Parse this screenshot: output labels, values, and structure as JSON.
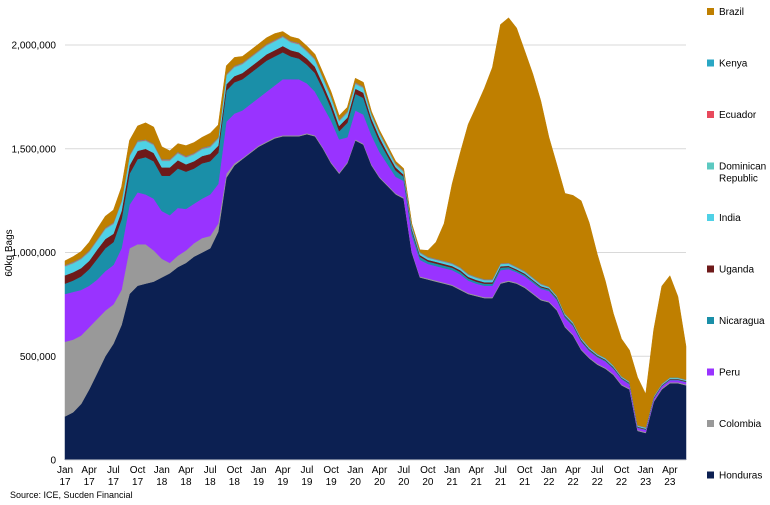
{
  "chart_data": {
    "type": "area",
    "stacked": true,
    "ylabel": "60kg Bags",
    "ylim": [
      0,
      2000000
    ],
    "yticks": [
      0,
      500000,
      1000000,
      1500000,
      2000000
    ],
    "ytick_labels": [
      "0",
      "500,000",
      "1,000,000",
      "1,500,000",
      "2,000,000"
    ],
    "xlim": [
      "2017-01",
      "2023-06"
    ],
    "xticks": [
      {
        "date": "2017-01",
        "label": "Jan 17"
      },
      {
        "date": "2017-04",
        "label": "Apr 17"
      },
      {
        "date": "2017-07",
        "label": "Jul 17"
      },
      {
        "date": "2017-10",
        "label": "Oct 17"
      },
      {
        "date": "2018-01",
        "label": "Jan 18"
      },
      {
        "date": "2018-04",
        "label": "Apr 18"
      },
      {
        "date": "2018-07",
        "label": "Jul 18"
      },
      {
        "date": "2018-10",
        "label": "Oct 18"
      },
      {
        "date": "2019-01",
        "label": "Jan 19"
      },
      {
        "date": "2019-04",
        "label": "Apr 19"
      },
      {
        "date": "2019-07",
        "label": "Jul 19"
      },
      {
        "date": "2019-10",
        "label": "Oct 19"
      },
      {
        "date": "2020-01",
        "label": "Jan 20"
      },
      {
        "date": "2020-04",
        "label": "Apr 20"
      },
      {
        "date": "2020-07",
        "label": "Jul 20"
      },
      {
        "date": "2020-10",
        "label": "Oct 20"
      },
      {
        "date": "2021-01",
        "label": "Jan 21"
      },
      {
        "date": "2021-04",
        "label": "Apr 21"
      },
      {
        "date": "2021-07",
        "label": "Jul 21"
      },
      {
        "date": "2021-10",
        "label": "Oct 21"
      },
      {
        "date": "2022-01",
        "label": "Jan 22"
      },
      {
        "date": "2022-04",
        "label": "Apr 22"
      },
      {
        "date": "2022-07",
        "label": "Jul 22"
      },
      {
        "date": "2022-10",
        "label": "Oct 22"
      },
      {
        "date": "2023-01",
        "label": "Jan 23"
      },
      {
        "date": "2023-04",
        "label": "Apr 23"
      }
    ],
    "grid": true,
    "legend_position": "right",
    "source": "Source: ICE, Sucden Financial",
    "x": [
      "2017-01",
      "2017-02",
      "2017-03",
      "2017-04",
      "2017-05",
      "2017-06",
      "2017-07",
      "2017-08",
      "2017-09",
      "2017-10",
      "2017-11",
      "2017-12",
      "2018-01",
      "2018-02",
      "2018-03",
      "2018-04",
      "2018-05",
      "2018-06",
      "2018-07",
      "2018-08",
      "2018-09",
      "2018-10",
      "2018-11",
      "2018-12",
      "2019-01",
      "2019-02",
      "2019-03",
      "2019-04",
      "2019-05",
      "2019-06",
      "2019-07",
      "2019-08",
      "2019-09",
      "2019-10",
      "2019-11",
      "2019-12",
      "2020-01",
      "2020-02",
      "2020-03",
      "2020-04",
      "2020-05",
      "2020-06",
      "2020-07",
      "2020-08",
      "2020-09",
      "2020-10",
      "2020-11",
      "2020-12",
      "2021-01",
      "2021-02",
      "2021-03",
      "2021-04",
      "2021-05",
      "2021-06",
      "2021-07",
      "2021-08",
      "2021-09",
      "2021-10",
      "2021-11",
      "2021-12",
      "2022-01",
      "2022-02",
      "2022-03",
      "2022-04",
      "2022-05",
      "2022-06",
      "2022-07",
      "2022-08",
      "2022-09",
      "2022-10",
      "2022-11",
      "2022-12",
      "2023-01",
      "2023-02",
      "2023-03",
      "2023-04",
      "2023-05",
      "2023-06"
    ],
    "series": [
      {
        "name": "Honduras",
        "color": "#0c2052",
        "values": [
          210000,
          230000,
          270000,
          340000,
          420000,
          500000,
          560000,
          650000,
          800000,
          840000,
          850000,
          860000,
          880000,
          900000,
          930000,
          950000,
          980000,
          1000000,
          1020000,
          1100000,
          1360000,
          1420000,
          1450000,
          1480000,
          1510000,
          1530000,
          1550000,
          1560000,
          1560000,
          1560000,
          1570000,
          1560000,
          1500000,
          1430000,
          1380000,
          1430000,
          1540000,
          1520000,
          1420000,
          1360000,
          1320000,
          1280000,
          1260000,
          1000000,
          880000,
          870000,
          860000,
          850000,
          840000,
          820000,
          800000,
          790000,
          780000,
          780000,
          850000,
          860000,
          850000,
          830000,
          800000,
          770000,
          760000,
          720000,
          640000,
          600000,
          530000,
          490000,
          460000,
          440000,
          410000,
          360000,
          340000,
          140000,
          130000,
          280000,
          340000,
          370000,
          370000,
          360000
        ]
      },
      {
        "name": "Colombia",
        "color": "#999999",
        "values": [
          360000,
          350000,
          330000,
          300000,
          260000,
          220000,
          190000,
          170000,
          220000,
          200000,
          190000,
          150000,
          90000,
          50000,
          55000,
          60000,
          65000,
          70000,
          60000,
          40000,
          20000,
          10000,
          5000,
          5000,
          5000,
          5000,
          5000,
          5000,
          5000,
          5000,
          5000,
          5000,
          5000,
          5000,
          5000,
          5000,
          5000,
          5000,
          5000,
          5000,
          5000,
          5000,
          5000,
          5000,
          5000,
          5000,
          5000,
          5000,
          5000,
          5000,
          5000,
          5000,
          5000,
          5000,
          5000,
          5000,
          5000,
          5000,
          5000,
          5000,
          5000,
          5000,
          5000,
          5000,
          5000,
          5000,
          5000,
          5000,
          5000,
          5000,
          5000,
          5000,
          5000,
          5000,
          5000,
          5000,
          5000,
          5000
        ]
      },
      {
        "name": "Peru",
        "color": "#9933ff",
        "values": [
          230000,
          230000,
          220000,
          200000,
          190000,
          190000,
          190000,
          200000,
          210000,
          250000,
          240000,
          250000,
          230000,
          230000,
          230000,
          200000,
          190000,
          190000,
          200000,
          190000,
          250000,
          240000,
          230000,
          230000,
          230000,
          240000,
          250000,
          270000,
          270000,
          270000,
          240000,
          210000,
          200000,
          200000,
          160000,
          120000,
          140000,
          140000,
          140000,
          120000,
          100000,
          80000,
          80000,
          80000,
          80000,
          70000,
          70000,
          70000,
          70000,
          70000,
          60000,
          55000,
          55000,
          55000,
          60000,
          55000,
          50000,
          50000,
          50000,
          50000,
          50000,
          45000,
          40000,
          40000,
          35000,
          30000,
          30000,
          30000,
          25000,
          25000,
          20000,
          10000,
          10000,
          10000,
          10000,
          10000,
          10000,
          10000
        ]
      },
      {
        "name": "Nicaragua",
        "color": "#1a8fa8",
        "values": [
          50000,
          55000,
          65000,
          80000,
          100000,
          110000,
          110000,
          140000,
          150000,
          160000,
          180000,
          180000,
          170000,
          190000,
          190000,
          180000,
          170000,
          170000,
          160000,
          150000,
          150000,
          150000,
          150000,
          150000,
          150000,
          150000,
          140000,
          130000,
          110000,
          100000,
          90000,
          90000,
          80000,
          60000,
          40000,
          70000,
          80000,
          80000,
          60000,
          50000,
          40000,
          30000,
          20000,
          20000,
          15000,
          12000,
          12000,
          12000,
          12000,
          12000,
          10000,
          10000,
          10000,
          10000,
          12000,
          10000,
          8000,
          8000,
          8000,
          8000,
          7000,
          7000,
          6000,
          6000,
          5000,
          5000,
          5000,
          5000,
          4000,
          4000,
          4000,
          3000,
          3000,
          3000,
          3000,
          3000,
          3000,
          3000
        ]
      },
      {
        "name": "Uganda",
        "color": "#6e1a1a",
        "values": [
          40000,
          40000,
          40000,
          40000,
          45000,
          45000,
          40000,
          40000,
          40000,
          40000,
          40000,
          40000,
          40000,
          40000,
          40000,
          35000,
          35000,
          35000,
          35000,
          35000,
          30000,
          30000,
          30000,
          30000,
          30000,
          30000,
          30000,
          30000,
          30000,
          30000,
          30000,
          30000,
          25000,
          25000,
          25000,
          25000,
          25000,
          25000,
          20000,
          20000,
          15000,
          15000,
          10000,
          10000,
          8000,
          8000,
          8000,
          8000,
          8000,
          8000,
          8000,
          8000,
          7000,
          7000,
          7000,
          6000,
          6000,
          6000,
          5000,
          5000,
          5000,
          5000,
          5000,
          5000,
          5000,
          5000,
          4000,
          4000,
          4000,
          3000,
          3000,
          3000,
          3000,
          3000,
          3000,
          3000,
          3000,
          3000
        ]
      },
      {
        "name": "India",
        "color": "#4fd1e6",
        "values": [
          40000,
          40000,
          40000,
          40000,
          40000,
          45000,
          45000,
          40000,
          40000,
          40000,
          35000,
          35000,
          30000,
          30000,
          30000,
          30000,
          30000,
          30000,
          30000,
          30000,
          40000,
          40000,
          40000,
          40000,
          40000,
          40000,
          40000,
          40000,
          35000,
          35000,
          30000,
          30000,
          25000,
          25000,
          20000,
          20000,
          20000,
          20000,
          15000,
          15000,
          15000,
          10000,
          10000,
          10000,
          8000,
          8000,
          8000,
          8000,
          8000,
          8000,
          8000,
          8000,
          8000,
          8000,
          8000,
          8000,
          6000,
          6000,
          6000,
          6000,
          5000,
          5000,
          5000,
          5000,
          5000,
          5000,
          4000,
          4000,
          4000,
          3000,
          3000,
          3000,
          3000,
          3000,
          3000,
          3000,
          3000,
          3000
        ]
      },
      {
        "name": "Dominican Republic",
        "color": "#5cc9c1",
        "values": [
          5000,
          5000,
          5000,
          5000,
          5000,
          5000,
          5000,
          5000,
          5000,
          5000,
          5000,
          5000,
          5000,
          5000,
          5000,
          5000,
          5000,
          5000,
          5000,
          5000,
          5000,
          5000,
          5000,
          5000,
          5000,
          5000,
          5000,
          5000,
          5000,
          5000,
          5000,
          5000,
          5000,
          5000,
          5000,
          5000,
          5000,
          5000,
          5000,
          5000,
          5000,
          5000,
          5000,
          5000,
          3000,
          3000,
          3000,
          3000,
          3000,
          3000,
          3000,
          3000,
          3000,
          3000,
          3000,
          3000,
          3000,
          3000,
          3000,
          3000,
          2000,
          2000,
          2000,
          2000,
          2000,
          2000,
          2000,
          2000,
          2000,
          2000,
          2000,
          2000,
          2000,
          2000,
          2000,
          2000,
          2000,
          2000
        ]
      },
      {
        "name": "Ecuador",
        "color": "#e8495c",
        "values": [
          3000,
          3000,
          3000,
          3000,
          3000,
          3000,
          3000,
          3000,
          3000,
          3000,
          3000,
          3000,
          3000,
          3000,
          3000,
          3000,
          3000,
          3000,
          3000,
          3000,
          3000,
          3000,
          3000,
          3000,
          3000,
          3000,
          3000,
          3000,
          3000,
          3000,
          3000,
          3000,
          3000,
          3000,
          3000,
          3000,
          3000,
          3000,
          3000,
          3000,
          3000,
          3000,
          3000,
          3000,
          2000,
          2000,
          2000,
          2000,
          2000,
          2000,
          2000,
          2000,
          2000,
          2000,
          2000,
          2000,
          2000,
          2000,
          2000,
          2000,
          1000,
          1000,
          1000,
          1000,
          1000,
          1000,
          1000,
          1000,
          1000,
          1000,
          1000,
          1000,
          1000,
          1000,
          1000,
          1000,
          1000,
          1000
        ]
      },
      {
        "name": "Kenya",
        "color": "#2aa7c4",
        "values": [
          2000,
          2000,
          2000,
          2000,
          2000,
          2000,
          2000,
          2000,
          2000,
          2000,
          2000,
          2000,
          2000,
          2000,
          2000,
          2000,
          2000,
          2000,
          2000,
          2000,
          2000,
          2000,
          2000,
          2000,
          2000,
          2000,
          2000,
          2000,
          2000,
          2000,
          2000,
          2000,
          2000,
          2000,
          2000,
          2000,
          2000,
          2000,
          2000,
          2000,
          2000,
          2000,
          2000,
          2000,
          2000,
          2000,
          2000,
          2000,
          2000,
          2000,
          2000,
          2000,
          2000,
          2000,
          2000,
          2000,
          2000,
          2000,
          2000,
          2000,
          1000,
          1000,
          1000,
          1000,
          1000,
          1000,
          1000,
          1000,
          1000,
          1000,
          1000,
          1000,
          1000,
          1000,
          1000,
          1000,
          1000,
          1000
        ]
      },
      {
        "name": "Brazil",
        "color": "#bf7f00",
        "values": [
          20000,
          25000,
          30000,
          40000,
          50000,
          55000,
          60000,
          65000,
          70000,
          70000,
          80000,
          80000,
          60000,
          40000,
          40000,
          50000,
          50000,
          50000,
          60000,
          60000,
          40000,
          40000,
          30000,
          30000,
          30000,
          30000,
          30000,
          20000,
          20000,
          20000,
          20000,
          20000,
          20000,
          20000,
          20000,
          20000,
          20000,
          20000,
          10000,
          10000,
          10000,
          10000,
          10000,
          5000,
          10000,
          30000,
          80000,
          180000,
          380000,
          550000,
          720000,
          820000,
          920000,
          1020000,
          1150000,
          1180000,
          1150000,
          1060000,
          980000,
          880000,
          720000,
          630000,
          580000,
          610000,
          660000,
          600000,
          480000,
          370000,
          250000,
          180000,
          150000,
          230000,
          160000,
          320000,
          470000,
          490000,
          390000,
          160000
        ]
      }
    ]
  }
}
